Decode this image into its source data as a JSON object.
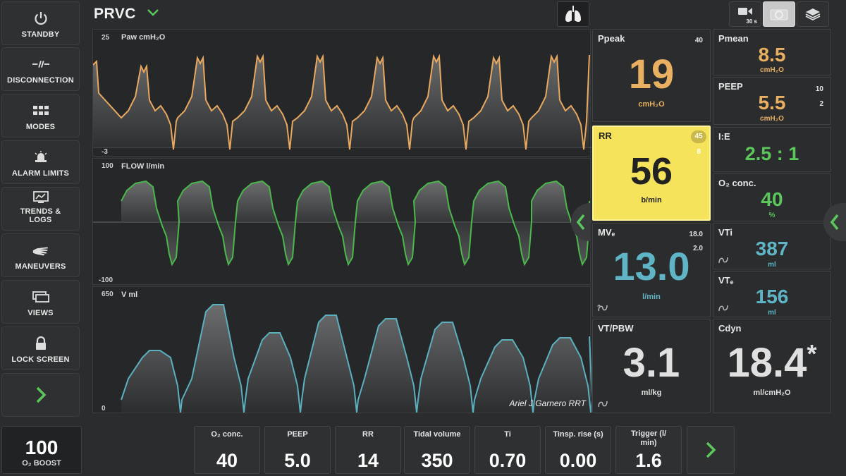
{
  "sidebar": {
    "items": [
      {
        "label": "STANDBY",
        "icon": "power-icon"
      },
      {
        "label": "DISCONNECTION",
        "icon": "disconnect-icon"
      },
      {
        "label": "MODES",
        "icon": "grid-icon"
      },
      {
        "label": "ALARM LIMITS",
        "icon": "alarm-bell-icon"
      },
      {
        "label": "TRENDS &\nLOGS",
        "icon": "trends-icon"
      },
      {
        "label": "MANEUVERS",
        "icon": "hand-icon"
      },
      {
        "label": "VIEWS",
        "icon": "views-icon"
      },
      {
        "label": "LOCK SCREEN",
        "icon": "lock-icon"
      }
    ],
    "expand_icon": "chevron-right-icon"
  },
  "header": {
    "mode": "PRVC",
    "video_label": "30 s"
  },
  "waveforms": {
    "paw": {
      "label": "Paw cmH₂O",
      "max": "25",
      "min": "-3"
    },
    "flow": {
      "label": "FLOW l/min",
      "max": "100",
      "min": "-100"
    },
    "volume": {
      "label": "V ml",
      "max": "650",
      "min": "0"
    },
    "watermark": "Ariel J Garnero RRT"
  },
  "params": {
    "ppeak": {
      "name": "Ppeak",
      "value": "19",
      "unit": "cmH₂O",
      "hi": "40"
    },
    "pmean": {
      "name": "Pmean",
      "value": "8.5",
      "unit": "cmH₂O"
    },
    "peep": {
      "name": "PEEP",
      "value": "5.5",
      "unit": "cmH₂O",
      "hi": "10",
      "lo": "2"
    },
    "rr": {
      "name": "RR",
      "value": "56",
      "unit": "b/min",
      "hi": "45",
      "lo": "8"
    },
    "ie": {
      "name": "I:E",
      "value": "2.5 : 1"
    },
    "o2": {
      "name": "O₂ conc.",
      "value": "40",
      "unit": "%"
    },
    "mve": {
      "name": "MVₑ",
      "value": "13.0",
      "unit": "l/min",
      "hi": "18.0",
      "lo": "2.0"
    },
    "vti": {
      "name": "VTi",
      "value": "387",
      "unit": "ml"
    },
    "vte": {
      "name": "VTₑ",
      "value": "156",
      "unit": "ml"
    },
    "vtpbw": {
      "name": "VT/PBW",
      "value": "3.1",
      "unit": "ml/kg"
    },
    "cdyn": {
      "name": "Cdyn",
      "value": "18.4",
      "star": "*",
      "unit": "ml/cmH₂O"
    }
  },
  "bottom": {
    "o2boost": {
      "value": "100",
      "label": "O₂ BOOST"
    },
    "settings": [
      {
        "name": "O₂ conc.",
        "value": "40"
      },
      {
        "name": "PEEP",
        "value": "5.0"
      },
      {
        "name": "RR",
        "value": "14"
      },
      {
        "name": "Tidal volume",
        "value": "350"
      },
      {
        "name": "Ti",
        "value": "0.70"
      },
      {
        "name": "Tinsp. rise (s)",
        "value": "0.00"
      },
      {
        "name": "Trigger (l/\nmin)",
        "value": "1.6"
      }
    ]
  },
  "colors": {
    "paw": "#e8a860",
    "flow": "#4ab84a",
    "volume": "#5bb0c0",
    "alarm_yellow": "#f5e35c",
    "green_value": "#5cc85c",
    "cyan_value": "#5fb5c5",
    "orange_value": "#e8b060"
  }
}
